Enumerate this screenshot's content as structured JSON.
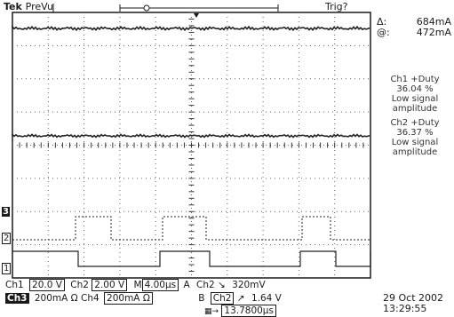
{
  "header": {
    "brand": "Tek",
    "mode": "PreVu",
    "trigger_status": "Trig?"
  },
  "cursor_readout": {
    "delta_symbol": "Δ:",
    "delta_value": "684mA",
    "at_symbol": "@:",
    "at_value": "472mA"
  },
  "measurements": [
    {
      "line1": "Ch1 +Duty",
      "line2": "36.04 %",
      "line3": "Low signal",
      "line4": "amplitude"
    },
    {
      "line1": "Ch2 +Duty",
      "line2": "36.37 %",
      "line3": "Low signal",
      "line4": "amplitude"
    }
  ],
  "channel_markers": [
    "3",
    "2",
    "1"
  ],
  "settings": {
    "ch1_label": "Ch1",
    "ch1_scale": "20.0 V",
    "ch2_label": "Ch2",
    "ch2_scale": "2.00 V",
    "ch3_label": "Ch3",
    "ch3_scale": "200mA Ω",
    "ch4_label": "Ch4",
    "ch4_scale": "200mA Ω",
    "timebase_label": "M",
    "timebase": "4.00µs",
    "acq_label": "A",
    "trig_source1": "Ch2",
    "trig_edge1": "↘",
    "trig_level1": "320mV",
    "b_label": "B",
    "trig_source2": "Ch2",
    "trig_edge2": "↗",
    "trig_level2": "1.64 V",
    "position": "13.7800µs"
  },
  "date": "29 Oct  2002",
  "time": "13:29:55",
  "colors": {
    "ink": "#1a1a1a",
    "grid": "#555555",
    "background": "#ffffff"
  }
}
